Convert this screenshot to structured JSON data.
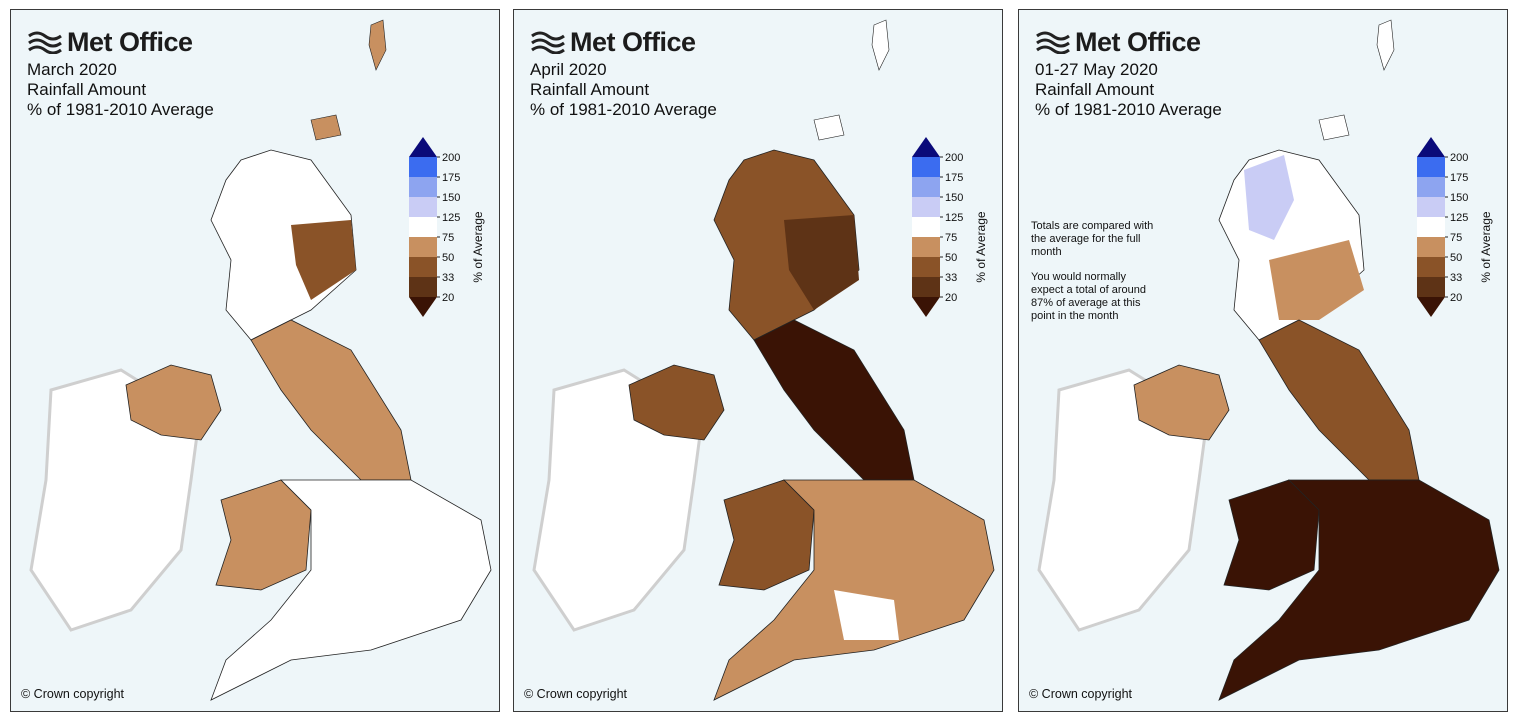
{
  "logo_text": "Met Office",
  "copyright": "© Crown copyright",
  "legend": {
    "axis_label": "% of Average",
    "ticks": [
      "200",
      "175",
      "150",
      "125",
      "75",
      "50",
      "33",
      "20"
    ],
    "colors": [
      "#0a0a7a",
      "#3b6cf0",
      "#8da4f0",
      "#c9ccf5",
      "#ffffff",
      "#c89060",
      "#8a5328",
      "#5e3316",
      "#3a1305"
    ]
  },
  "panels": [
    {
      "month": "March 2020",
      "line2": "Rainfall Amount",
      "line3": "% of 1981-2010 Average",
      "note": null,
      "dominant_fill": "#ffffff",
      "scotland_fill": "#ffffff",
      "north_fill": "#c89060",
      "south_fill": "#ffffff"
    },
    {
      "month": "April 2020",
      "line2": "Rainfall Amount",
      "line3": "% of 1981-2010 Average",
      "note": null,
      "dominant_fill": "#8a5328",
      "scotland_fill": "#8a5328",
      "north_fill": "#3a1305",
      "south_fill": "#c89060"
    },
    {
      "month": "01-27 May 2020",
      "line2": "Rainfall Amount",
      "line3": "% of 1981-2010 Average",
      "note": {
        "para1": "Totals are compared with the average for the full month",
        "para2": "You would normally expect a total of around 87% of average at this point in the month"
      },
      "dominant_fill": "#3a1305",
      "scotland_fill": "#ffffff",
      "north_fill": "#c89060",
      "south_fill": "#3a1305"
    }
  ]
}
